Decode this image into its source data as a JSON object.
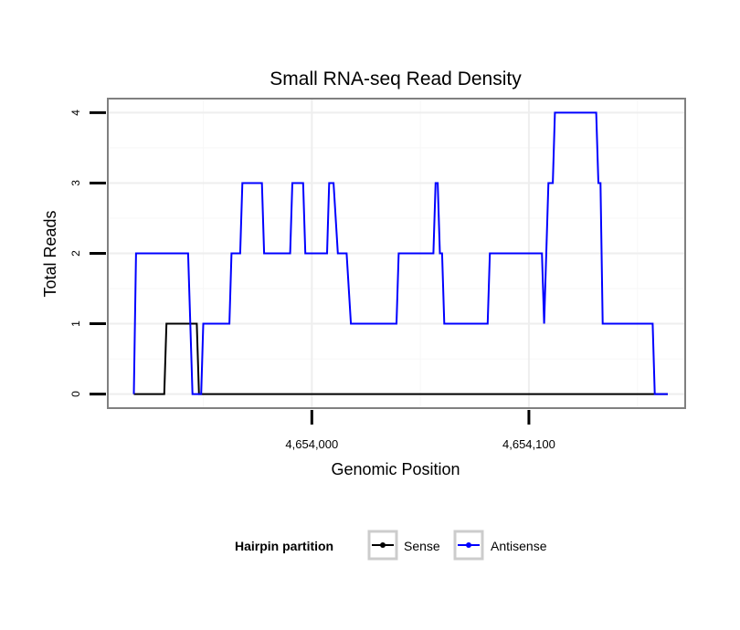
{
  "chart_data": {
    "type": "line",
    "title": "Small RNA-seq Read Density",
    "xlabel": "Genomic Position",
    "ylabel": "Total Reads",
    "xlim": [
      4653906,
      4654172
    ],
    "ylim": [
      -0.2,
      4.2
    ],
    "x_ticks": [
      4654000,
      4654100
    ],
    "x_tick_labels": [
      "4,654,000",
      "4,654,100"
    ],
    "y_ticks": [
      0,
      1,
      2,
      3,
      4
    ],
    "y_tick_labels": [
      "0",
      "1",
      "2",
      "3",
      "4"
    ],
    "grid": true,
    "legend": {
      "title": "Hairpin partition",
      "placement": "bottom"
    },
    "series": [
      {
        "name": "Sense",
        "color": "#000000",
        "points": [
          [
            4653918,
            0
          ],
          [
            4653932,
            0
          ],
          [
            4653933,
            1
          ],
          [
            4653947,
            1
          ],
          [
            4653948,
            0
          ],
          [
            4654164,
            0
          ]
        ]
      },
      {
        "name": "Antisense",
        "color": "#0000ff",
        "points": [
          [
            4653918,
            0
          ],
          [
            4653919,
            2
          ],
          [
            4653943,
            2
          ],
          [
            4653945,
            0
          ],
          [
            4653949,
            0
          ],
          [
            4653950,
            1
          ],
          [
            4653962,
            1
          ],
          [
            4653963,
            2
          ],
          [
            4653967,
            2
          ],
          [
            4653968,
            3
          ],
          [
            4653977,
            3
          ],
          [
            4653978,
            2
          ],
          [
            4653990,
            2
          ],
          [
            4653991,
            3
          ],
          [
            4653996,
            3
          ],
          [
            4653997,
            2
          ],
          [
            4654007,
            2
          ],
          [
            4654008,
            3
          ],
          [
            4654010,
            3
          ],
          [
            4654012,
            2
          ],
          [
            4654016,
            2
          ],
          [
            4654018,
            1
          ],
          [
            4654039,
            1
          ],
          [
            4654040,
            2
          ],
          [
            4654056,
            2
          ],
          [
            4654057,
            3
          ],
          [
            4654058,
            3
          ],
          [
            4654059,
            2
          ],
          [
            4654060,
            2
          ],
          [
            4654061,
            1
          ],
          [
            4654081,
            1
          ],
          [
            4654082,
            2
          ],
          [
            4654106,
            2
          ],
          [
            4654107,
            1
          ],
          [
            4654109,
            3
          ],
          [
            4654111,
            3
          ],
          [
            4654112,
            4
          ],
          [
            4654131,
            4
          ],
          [
            4654132,
            3
          ],
          [
            4654133,
            3
          ],
          [
            4654134,
            1
          ],
          [
            4654157,
            1
          ],
          [
            4654158,
            0
          ],
          [
            4654164,
            0
          ]
        ]
      }
    ]
  }
}
